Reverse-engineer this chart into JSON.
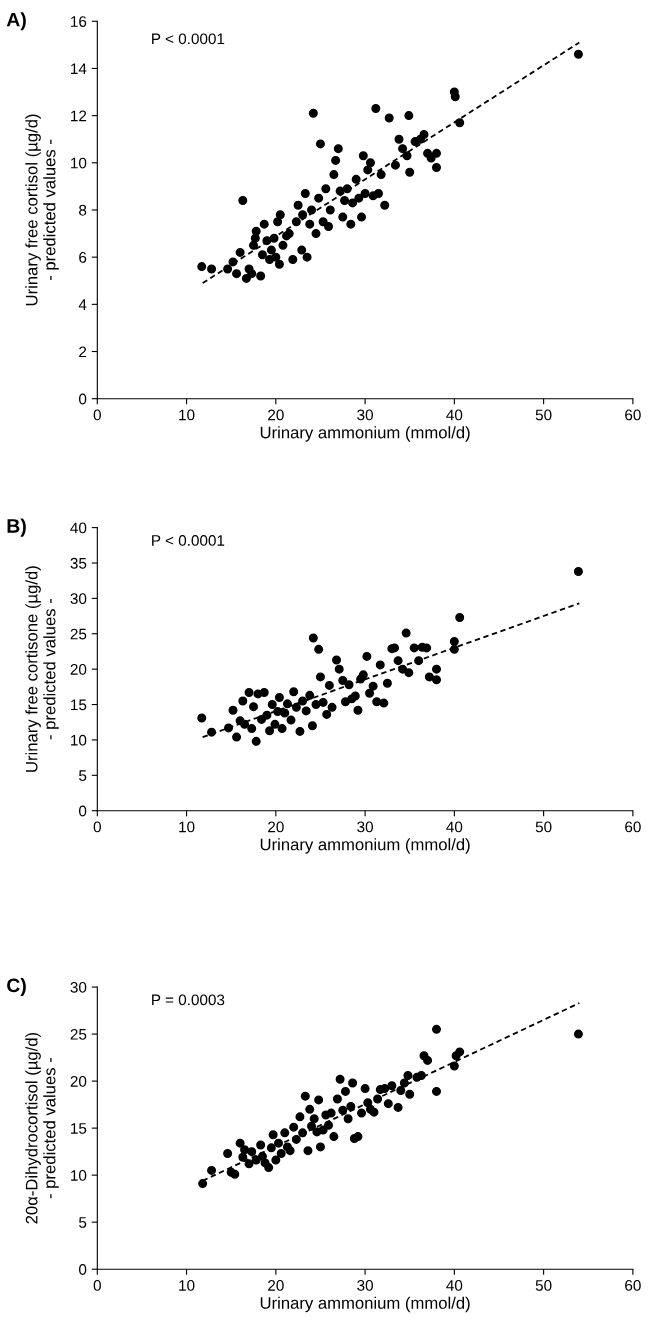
{
  "chart_data": [
    {
      "type": "scatter",
      "title": "A)",
      "ylabel": "Urinary free cortisol (µg/d)\n- predicted values -",
      "xlabel": "Urinary ammonium (mmol/d)",
      "annotations": [
        "P < 0.0001"
      ],
      "xlim": [
        0,
        60
      ],
      "xticks": [
        0,
        10,
        20,
        30,
        40,
        50,
        60
      ],
      "ylim": [
        0,
        16
      ],
      "yticks": [
        0,
        2,
        4,
        6,
        8,
        10,
        12,
        14,
        16
      ],
      "grid": false,
      "series": [
        {
          "type": "scatter",
          "color": "#000000",
          "marker": "circle",
          "x": [
            11.7,
            12.8,
            14.6,
            15.2,
            15.6,
            16.0,
            16.3,
            16.7,
            17.0,
            17.3,
            17.5,
            17.7,
            17.8,
            18.3,
            18.5,
            18.7,
            19.0,
            19.3,
            19.5,
            19.8,
            20.0,
            20.2,
            20.4,
            20.5,
            20.8,
            21.2,
            21.5,
            21.9,
            22.3,
            22.5,
            22.9,
            23.0,
            23.3,
            23.5,
            23.8,
            24.0,
            24.2,
            24.5,
            24.8,
            25.0,
            25.3,
            25.6,
            25.9,
            26.1,
            26.5,
            26.7,
            27.0,
            27.2,
            27.5,
            27.7,
            28.0,
            28.4,
            28.6,
            29.0,
            29.3,
            29.6,
            29.8,
            30.0,
            30.3,
            30.6,
            30.9,
            31.2,
            31.5,
            31.8,
            32.2,
            32.7,
            33.4,
            33.8,
            34.2,
            34.7,
            34.9,
            35.0,
            35.6,
            36.2,
            36.6,
            37.0,
            37.4,
            38.0,
            38.0,
            40.0,
            40.1,
            40.6,
            53.9
          ],
          "values": [
            5.6,
            5.5,
            5.5,
            5.8,
            5.3,
            6.2,
            8.4,
            5.1,
            5.5,
            5.3,
            6.5,
            6.8,
            7.1,
            5.2,
            6.1,
            7.4,
            6.7,
            5.9,
            6.3,
            6.8,
            6.0,
            7.5,
            5.7,
            7.8,
            6.5,
            6.9,
            7.0,
            5.9,
            7.5,
            8.2,
            6.3,
            7.8,
            8.7,
            6.0,
            7.4,
            8.0,
            12.1,
            7.0,
            8.5,
            10.8,
            7.5,
            8.9,
            7.3,
            8.0,
            9.5,
            10.1,
            10.6,
            8.8,
            7.7,
            8.4,
            8.9,
            7.4,
            8.3,
            9.3,
            8.5,
            7.7,
            10.3,
            8.7,
            9.7,
            10.0,
            8.6,
            12.3,
            8.7,
            9.5,
            8.2,
            11.9,
            9.9,
            11.0,
            10.6,
            10.3,
            12.0,
            9.6,
            10.9,
            11.0,
            11.2,
            10.4,
            10.2,
            10.4,
            9.8,
            13.0,
            12.8,
            11.7,
            14.6
          ]
        },
        {
          "type": "line",
          "color": "#000000",
          "line_style": "dashed",
          "marker": "none",
          "x": [
            11.8,
            54
          ],
          "values": [
            4.9,
            15.1
          ]
        }
      ]
    },
    {
      "type": "scatter",
      "title": "B)",
      "ylabel": "Urinary free cortisone (µg/d)\n- predicted values -",
      "xlabel": "Urinary ammonium (mmol/d)",
      "annotations": [
        "P < 0.0001"
      ],
      "xlim": [
        0,
        60
      ],
      "xticks": [
        0,
        10,
        20,
        30,
        40,
        50,
        60
      ],
      "ylim": [
        0,
        40
      ],
      "yticks": [
        0,
        5,
        10,
        15,
        20,
        25,
        30,
        35,
        40
      ],
      "grid": false,
      "series": [
        {
          "type": "scatter",
          "color": "#000000",
          "marker": "circle",
          "x": [
            11.7,
            12.8,
            14.7,
            15.2,
            15.6,
            16.0,
            16.3,
            16.5,
            17.0,
            17.3,
            17.5,
            17.8,
            18.0,
            18.4,
            18.7,
            19.0,
            19.3,
            19.6,
            19.9,
            20.2,
            20.4,
            20.7,
            21.0,
            21.3,
            21.7,
            22.0,
            22.3,
            22.7,
            23.0,
            23.4,
            23.8,
            24.1,
            24.2,
            24.5,
            24.8,
            25.0,
            25.3,
            25.7,
            26.0,
            26.3,
            26.8,
            27.1,
            27.5,
            27.8,
            28.2,
            28.5,
            28.9,
            29.2,
            29.5,
            29.8,
            30.2,
            30.5,
            30.9,
            31.3,
            31.7,
            32.1,
            32.5,
            33.0,
            33.3,
            33.7,
            34.2,
            34.6,
            34.9,
            35.5,
            36.0,
            36.4,
            36.9,
            37.2,
            38.0,
            38.0,
            40.0,
            40.0,
            40.6,
            53.9
          ],
          "values": [
            13.1,
            11.1,
            11.7,
            14.2,
            10.4,
            12.7,
            15.5,
            12.2,
            16.7,
            11.6,
            14.7,
            9.8,
            16.5,
            12.9,
            16.7,
            13.5,
            11.3,
            15.0,
            12.2,
            14.0,
            16.0,
            11.6,
            13.8,
            15.1,
            12.8,
            16.8,
            14.6,
            11.2,
            15.5,
            14.1,
            16.3,
            12.0,
            24.4,
            15.0,
            22.8,
            18.9,
            15.3,
            13.6,
            17.7,
            14.6,
            21.3,
            20.0,
            18.4,
            15.4,
            17.8,
            15.8,
            16.2,
            14.2,
            18.6,
            19.2,
            21.8,
            16.6,
            17.6,
            15.4,
            20.6,
            15.2,
            18.0,
            22.9,
            23.0,
            21.2,
            20.0,
            25.1,
            19.5,
            23.0,
            21.2,
            23.1,
            23.0,
            18.9,
            20.0,
            18.5,
            22.8,
            23.9,
            27.3,
            33.8
          ]
        },
        {
          "type": "line",
          "color": "#000000",
          "line_style": "dashed",
          "marker": "none",
          "x": [
            11.8,
            54
          ],
          "values": [
            10.4,
            29.3
          ]
        }
      ]
    },
    {
      "type": "scatter",
      "title": "C)",
      "ylabel": "20α-Dihydrocortisol (µg/d)\n- predicted values -",
      "xlabel": "Urinary ammonium (mmol/d)",
      "annotations": [
        "P = 0.0003"
      ],
      "xlim": [
        0,
        60
      ],
      "xticks": [
        0,
        10,
        20,
        30,
        40,
        50,
        60
      ],
      "ylim": [
        0,
        30
      ],
      "yticks": [
        0,
        5,
        10,
        15,
        20,
        25,
        30
      ],
      "grid": false,
      "series": [
        {
          "type": "scatter",
          "color": "#000000",
          "marker": "circle",
          "x": [
            11.8,
            12.8,
            14.6,
            15.0,
            15.4,
            16.0,
            16.3,
            16.5,
            17.0,
            17.3,
            17.8,
            18.3,
            18.5,
            18.8,
            19.2,
            19.5,
            19.7,
            20.0,
            20.3,
            20.6,
            21.0,
            21.3,
            21.6,
            22.0,
            22.3,
            22.7,
            23.0,
            23.3,
            23.6,
            23.8,
            24.0,
            24.3,
            24.6,
            24.8,
            25.0,
            25.3,
            25.6,
            25.9,
            26.2,
            26.5,
            26.9,
            27.2,
            27.5,
            27.8,
            28.1,
            28.4,
            28.6,
            28.8,
            29.2,
            29.6,
            30.0,
            30.3,
            30.6,
            31.0,
            31.4,
            31.7,
            32.2,
            32.6,
            33.0,
            33.7,
            34.0,
            34.4,
            34.8,
            35.0,
            35.8,
            36.3,
            36.6,
            37.0,
            38.0,
            38.0,
            40.0,
            40.2,
            40.6,
            53.9
          ],
          "values": [
            9.1,
            10.5,
            12.3,
            10.3,
            10.1,
            13.4,
            11.9,
            12.7,
            11.2,
            12.5,
            11.6,
            13.2,
            12.0,
            11.3,
            10.8,
            12.9,
            14.3,
            11.6,
            13.4,
            12.3,
            14.5,
            13.0,
            12.6,
            15.1,
            13.8,
            16.2,
            14.5,
            18.4,
            12.6,
            17.0,
            15.2,
            16.0,
            14.6,
            18.0,
            13.0,
            14.8,
            16.4,
            15.3,
            16.6,
            14.1,
            18.1,
            20.2,
            16.9,
            18.9,
            16.0,
            17.3,
            19.8,
            13.9,
            14.1,
            16.6,
            19.2,
            17.7,
            17.0,
            16.7,
            18.1,
            19.1,
            19.2,
            17.6,
            19.5,
            17.2,
            19.0,
            19.8,
            20.6,
            18.6,
            20.4,
            20.6,
            22.7,
            22.2,
            25.5,
            18.9,
            21.6,
            22.7,
            23.1,
            25.0
          ]
        },
        {
          "type": "line",
          "color": "#000000",
          "line_style": "dashed",
          "marker": "none",
          "x": [
            11.8,
            54
          ],
          "values": [
            9.4,
            28.3
          ]
        }
      ]
    }
  ]
}
